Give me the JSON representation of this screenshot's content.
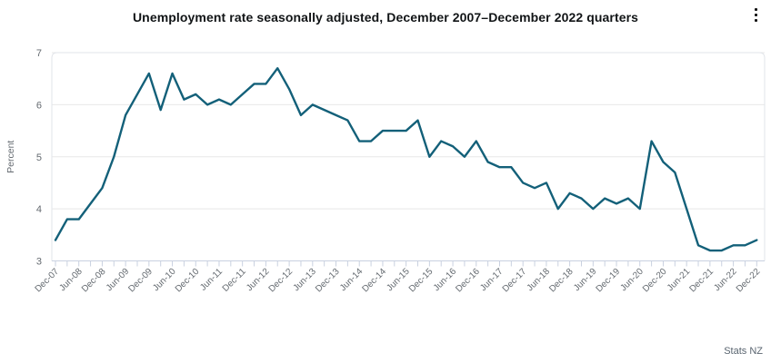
{
  "header": {
    "title": "Unemployment rate seasonally adjusted, December 2007–December 2022 quarters",
    "menu_icon": "kebab-menu"
  },
  "footer": {
    "source_label": "Stats NZ"
  },
  "chart_data": {
    "type": "line",
    "title": "Unemployment rate seasonally adjusted, December 2007–December 2022 quarters",
    "xlabel": "",
    "ylabel": "Percent",
    "ylim": [
      3,
      7
    ],
    "yticks": [
      3,
      4,
      5,
      6,
      7
    ],
    "grid": true,
    "legend_position": "none",
    "line_color": "#136079",
    "labels_every_n_ticks": 2,
    "x_labeled_ticks": [
      "Dec-07",
      "Jun-08",
      "Dec-08",
      "Jun-09",
      "Dec-09",
      "Jun-10",
      "Dec-10",
      "Jun-11",
      "Dec-11",
      "Jun-12",
      "Dec-12",
      "Jun-13",
      "Dec-13",
      "Jun-14",
      "Dec-14",
      "Jun-15",
      "Dec-15",
      "Jun-16",
      "Dec-16",
      "Jun-17",
      "Dec-17",
      "Jun-18",
      "Dec-18",
      "Jun-19",
      "Dec-19",
      "Jun-20",
      "Dec-20",
      "Jun-21",
      "Dec-21",
      "Jun-22",
      "Dec-22"
    ],
    "categories": [
      "Dec-07",
      "Mar-08",
      "Jun-08",
      "Sep-08",
      "Dec-08",
      "Mar-09",
      "Jun-09",
      "Sep-09",
      "Dec-09",
      "Mar-10",
      "Jun-10",
      "Sep-10",
      "Dec-10",
      "Mar-11",
      "Jun-11",
      "Sep-11",
      "Dec-11",
      "Mar-12",
      "Jun-12",
      "Sep-12",
      "Dec-12",
      "Mar-13",
      "Jun-13",
      "Sep-13",
      "Dec-13",
      "Mar-14",
      "Jun-14",
      "Sep-14",
      "Dec-14",
      "Mar-15",
      "Jun-15",
      "Sep-15",
      "Dec-15",
      "Mar-16",
      "Jun-16",
      "Sep-16",
      "Dec-16",
      "Mar-17",
      "Jun-17",
      "Sep-17",
      "Dec-17",
      "Mar-18",
      "Jun-18",
      "Sep-18",
      "Dec-18",
      "Mar-19",
      "Jun-19",
      "Sep-19",
      "Dec-19",
      "Mar-20",
      "Jun-20",
      "Sep-20",
      "Dec-20",
      "Mar-21",
      "Jun-21",
      "Sep-21",
      "Dec-21",
      "Mar-22",
      "Jun-22",
      "Sep-22",
      "Dec-22"
    ],
    "values": [
      3.4,
      3.8,
      3.8,
      4.1,
      4.4,
      5.0,
      5.8,
      6.2,
      6.6,
      5.9,
      6.6,
      6.1,
      6.2,
      6.0,
      6.1,
      6.0,
      6.2,
      6.4,
      6.4,
      6.7,
      6.3,
      5.8,
      6.0,
      5.9,
      5.8,
      5.7,
      5.3,
      5.3,
      5.5,
      5.5,
      5.5,
      5.7,
      5.0,
      5.3,
      5.2,
      5.0,
      5.3,
      4.9,
      4.8,
      4.8,
      4.5,
      4.4,
      4.5,
      4.0,
      4.3,
      4.2,
      4.0,
      4.2,
      4.1,
      4.2,
      4.0,
      5.3,
      4.9,
      4.7,
      4.0,
      3.3,
      3.2,
      3.2,
      3.3,
      3.3,
      3.4
    ],
    "colors": {
      "line": "#136079",
      "gridline": "#e8e8e8",
      "plot_border": "#e2e5ea",
      "axis_tick": "#c9d1e0",
      "axis_label": "#646a70",
      "title": "#111416",
      "source": "#5a6570"
    }
  }
}
